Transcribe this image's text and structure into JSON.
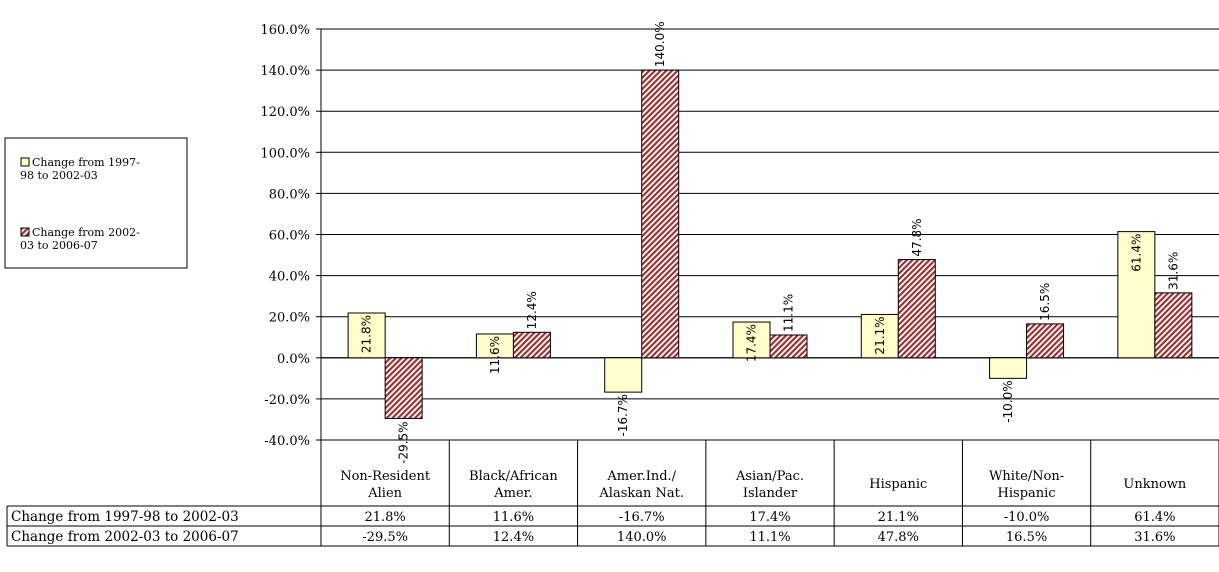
{
  "chart_data": {
    "type": "bar",
    "categories": [
      [
        "Non-Resident",
        "Alien"
      ],
      [
        "Black/African",
        "Amer."
      ],
      [
        "Amer.Ind./",
        "Alaskan Nat."
      ],
      [
        "Asian/Pac.",
        "Islander"
      ],
      [
        "Hispanic"
      ],
      [
        "White/Non-",
        "Hispanic"
      ],
      [
        "Unknown"
      ]
    ],
    "series": [
      {
        "name": "Change from 1997-98 to 2002-03",
        "legend_lines": [
          "Change from 1997-",
          "98 to 2002-03"
        ],
        "values": [
          21.8,
          11.6,
          -16.7,
          17.4,
          21.1,
          -10.0,
          61.4
        ],
        "labels": [
          "21.8%",
          "11.6%",
          "-16.7%",
          "17.4%",
          "21.1%",
          "-10.0%",
          "61.4%"
        ],
        "color": "#ffffcc"
      },
      {
        "name": "Change from 2002-03 to 2006-07",
        "legend_lines": [
          "Change from 2002-",
          "03 to 2006-07"
        ],
        "values": [
          -29.5,
          12.4,
          140.0,
          11.1,
          47.8,
          16.5,
          31.6
        ],
        "labels": [
          "-29.5%",
          "12.4%",
          "140.0%",
          "11.1%",
          "47.8%",
          "16.5%",
          "31.6%"
        ],
        "color": "#993333"
      }
    ],
    "ylim": [
      -40,
      160
    ],
    "yticks": [
      "-40.0%",
      "-20.0%",
      "0.0%",
      "20.0%",
      "40.0%",
      "60.0%",
      "80.0%",
      "100.0%",
      "120.0%",
      "140.0%",
      "160.0%"
    ],
    "ytick_values": [
      -40,
      -20,
      0,
      20,
      40,
      60,
      80,
      100,
      120,
      140,
      160
    ],
    "grid": true,
    "legend_position": "left",
    "data_table": true
  }
}
